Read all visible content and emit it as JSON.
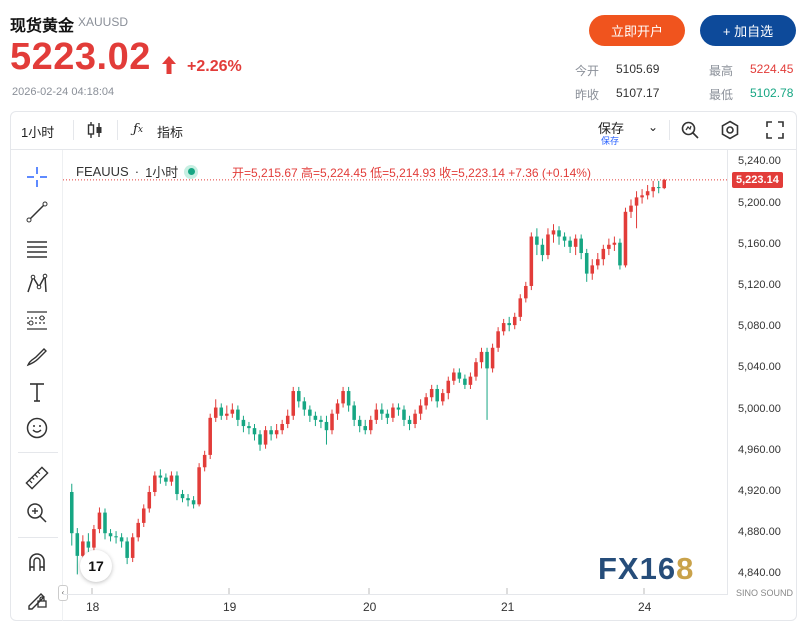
{
  "header": {
    "title": "现货黄金",
    "symbol": "XAUUSD",
    "price": "5223.02",
    "change_pct": "+2.26%",
    "datetime": "2026-02-24 04:18:04",
    "open_account_label": "立即开户",
    "add_watch_label": "+ 加自选"
  },
  "stats": {
    "open_label": "今开",
    "open_value": "5105.69",
    "prev_close_label": "昨收",
    "prev_close_value": "5107.17",
    "high_label": "最高",
    "high_value": "5224.45",
    "low_label": "最低",
    "low_value": "5102.78"
  },
  "toolbar": {
    "interval": "1小时",
    "indicators_label": "指标",
    "save_label": "保存",
    "save_sub_label": "保存"
  },
  "legend": {
    "symbol": "FEAUUS",
    "interval": "1小时",
    "ohlc": "开=5,215.67 高=5,224.45 低=5,214.93 收=5,223.14 +7.36 (+0.14%)"
  },
  "price_tag": "5,223.14",
  "watermark": "FX168",
  "watermark_sub": "SINO SOUND",
  "colors": {
    "up": "#e23c39",
    "down": "#16a683",
    "accent": "#f0541e",
    "brand": "#0d4a9a"
  },
  "chart_data": {
    "type": "candlestick",
    "y_ticks": [
      "5,240.00",
      "5,200.00",
      "5,160.00",
      "5,120.00",
      "5,080.00",
      "5,040.00",
      "5,000.00",
      "4,960.00",
      "4,920.00",
      "4,880.00",
      "4,840.00"
    ],
    "x_ticks": [
      "18",
      "19",
      "20",
      "21",
      "24"
    ],
    "ylim": [
      4820,
      5252
    ],
    "candles": [
      [
        4920,
        4880,
        4928,
        4868
      ],
      [
        4880,
        4858,
        4885,
        4840
      ],
      [
        4858,
        4872,
        4878,
        4852
      ],
      [
        4872,
        4866,
        4880,
        4860
      ],
      [
        4866,
        4884,
        4888,
        4862
      ],
      [
        4884,
        4900,
        4905,
        4880
      ],
      [
        4900,
        4880,
        4904,
        4874
      ],
      [
        4880,
        4877,
        4884,
        4872
      ],
      [
        4877,
        4876,
        4882,
        4870
      ],
      [
        4876,
        4872,
        4880,
        4866
      ],
      [
        4872,
        4856,
        4876,
        4850
      ],
      [
        4856,
        4876,
        4880,
        4852
      ],
      [
        4876,
        4890,
        4894,
        4872
      ],
      [
        4890,
        4904,
        4908,
        4886
      ],
      [
        4904,
        4920,
        4926,
        4900
      ],
      [
        4920,
        4936,
        4940,
        4916
      ],
      [
        4936,
        4934,
        4942,
        4928
      ],
      [
        4934,
        4930,
        4938,
        4926
      ],
      [
        4930,
        4936,
        4940,
        4926
      ],
      [
        4936,
        4918,
        4940,
        4912
      ],
      [
        4918,
        4914,
        4922,
        4910
      ],
      [
        4914,
        4912,
        4918,
        4906
      ],
      [
        4912,
        4908,
        4916,
        4904
      ],
      [
        4908,
        4944,
        4948,
        4906
      ],
      [
        4944,
        4956,
        4960,
        4940
      ],
      [
        4956,
        4992,
        4996,
        4952
      ],
      [
        4992,
        5002,
        5010,
        4988
      ],
      [
        5002,
        4994,
        5006,
        4990
      ],
      [
        4994,
        4996,
        5004,
        4990
      ],
      [
        4996,
        5000,
        5006,
        4992
      ],
      [
        5000,
        4990,
        5004,
        4984
      ],
      [
        4990,
        4984,
        4994,
        4978
      ],
      [
        4984,
        4982,
        4988,
        4976
      ],
      [
        4982,
        4976,
        4986,
        4970
      ],
      [
        4976,
        4966,
        4980,
        4960
      ],
      [
        4966,
        4980,
        4984,
        4962
      ],
      [
        4980,
        4976,
        4984,
        4970
      ],
      [
        4976,
        4980,
        4986,
        4972
      ],
      [
        4980,
        4986,
        4990,
        4976
      ],
      [
        4986,
        4994,
        5000,
        4982
      ],
      [
        4994,
        5018,
        5022,
        4990
      ],
      [
        5018,
        5008,
        5022,
        5002
      ],
      [
        5008,
        5000,
        5012,
        4994
      ],
      [
        5000,
        4994,
        5004,
        4988
      ],
      [
        4994,
        4990,
        4998,
        4984
      ],
      [
        4990,
        4988,
        4994,
        4982
      ],
      [
        4988,
        4980,
        4994,
        4966
      ],
      [
        4980,
        4996,
        5000,
        4976
      ],
      [
        4996,
        5006,
        5010,
        4990
      ],
      [
        5006,
        5018,
        5022,
        5002
      ],
      [
        5018,
        5004,
        5022,
        4998
      ],
      [
        5004,
        4990,
        5008,
        4984
      ],
      [
        4990,
        4984,
        4994,
        4978
      ],
      [
        4984,
        4980,
        4990,
        4976
      ],
      [
        4980,
        4990,
        4994,
        4976
      ],
      [
        4990,
        5000,
        5006,
        4986
      ],
      [
        5000,
        4996,
        5006,
        4990
      ],
      [
        4996,
        4992,
        5000,
        4986
      ],
      [
        4992,
        5002,
        5006,
        4988
      ],
      [
        5002,
        5000,
        5006,
        4994
      ],
      [
        5000,
        4990,
        5004,
        4984
      ],
      [
        4990,
        4986,
        4994,
        4980
      ],
      [
        4986,
        4996,
        5000,
        4982
      ],
      [
        4996,
        5004,
        5010,
        4990
      ],
      [
        5004,
        5012,
        5016,
        5000
      ],
      [
        5012,
        5020,
        5024,
        5008
      ],
      [
        5020,
        5008,
        5024,
        5002
      ],
      [
        5008,
        5016,
        5020,
        5004
      ],
      [
        5016,
        5028,
        5032,
        5010
      ],
      [
        5028,
        5036,
        5040,
        5024
      ],
      [
        5036,
        5030,
        5040,
        5026
      ],
      [
        5030,
        5024,
        5034,
        5020
      ],
      [
        5024,
        5032,
        5036,
        5020
      ],
      [
        5032,
        5046,
        5050,
        5028
      ],
      [
        5046,
        5056,
        5060,
        5040
      ],
      [
        5056,
        5040,
        5060,
        4990
      ],
      [
        5040,
        5060,
        5064,
        5036
      ],
      [
        5060,
        5076,
        5080,
        5056
      ],
      [
        5076,
        5084,
        5088,
        5072
      ],
      [
        5084,
        5082,
        5090,
        5076
      ],
      [
        5082,
        5090,
        5094,
        5078
      ],
      [
        5090,
        5108,
        5112,
        5086
      ],
      [
        5108,
        5120,
        5124,
        5104
      ],
      [
        5120,
        5168,
        5172,
        5116
      ],
      [
        5168,
        5160,
        5176,
        5150
      ],
      [
        5160,
        5150,
        5166,
        5144
      ],
      [
        5150,
        5170,
        5176,
        5146
      ],
      [
        5170,
        5174,
        5180,
        5162
      ],
      [
        5174,
        5168,
        5178,
        5160
      ],
      [
        5168,
        5164,
        5172,
        5158
      ],
      [
        5164,
        5158,
        5168,
        5152
      ],
      [
        5158,
        5166,
        5170,
        5150
      ],
      [
        5166,
        5152,
        5170,
        5146
      ],
      [
        5152,
        5132,
        5156,
        5124
      ],
      [
        5132,
        5140,
        5146,
        5126
      ],
      [
        5140,
        5146,
        5152,
        5136
      ],
      [
        5146,
        5156,
        5160,
        5140
      ],
      [
        5156,
        5160,
        5166,
        5150
      ],
      [
        5160,
        5162,
        5168,
        5154
      ],
      [
        5162,
        5140,
        5166,
        5136
      ],
      [
        5140,
        5192,
        5196,
        5138
      ],
      [
        5192,
        5198,
        5204,
        5186
      ],
      [
        5198,
        5206,
        5212,
        5176
      ],
      [
        5206,
        5208,
        5214,
        5200
      ],
      [
        5208,
        5212,
        5218,
        5204
      ],
      [
        5212,
        5216,
        5222,
        5206
      ],
      [
        5216,
        5215,
        5222,
        5210
      ],
      [
        5215,
        5223,
        5224,
        5214
      ]
    ]
  }
}
